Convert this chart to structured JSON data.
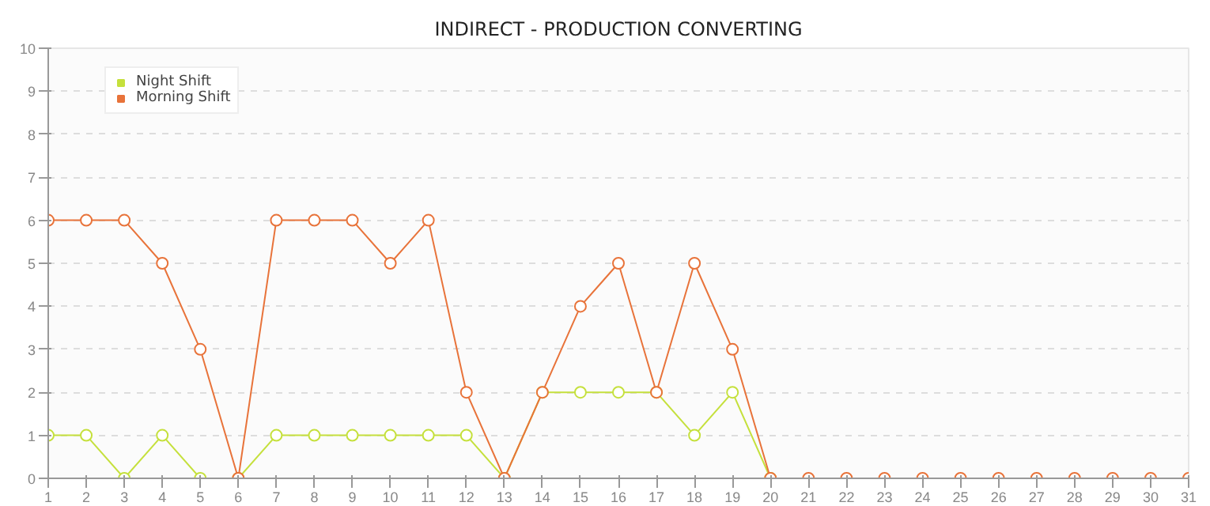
{
  "chart_data": {
    "type": "line",
    "title": "INDIRECT - PRODUCTION CONVERTING",
    "x": [
      1,
      2,
      3,
      4,
      5,
      6,
      7,
      8,
      9,
      10,
      11,
      12,
      13,
      14,
      15,
      16,
      17,
      18,
      19,
      20,
      21,
      22,
      23,
      24,
      25,
      26,
      27,
      28,
      29,
      30,
      31
    ],
    "series": [
      {
        "name": "Night Shift",
        "color": "#c5e03c",
        "values": [
          1,
          1,
          0,
          1,
          0,
          0,
          1,
          1,
          1,
          1,
          1,
          1,
          0,
          2,
          2,
          2,
          2,
          1,
          2,
          0,
          null,
          null,
          null,
          null,
          null,
          null,
          null,
          null,
          null,
          null,
          null
        ]
      },
      {
        "name": "Morning Shift",
        "color": "#e8733a",
        "values": [
          6,
          6,
          6,
          5,
          3,
          0,
          6,
          6,
          6,
          5,
          6,
          2,
          0,
          2,
          4,
          5,
          2,
          5,
          3,
          0,
          0,
          0,
          0,
          0,
          0,
          0,
          0,
          0,
          0,
          0,
          0
        ]
      }
    ],
    "xlim": [
      1,
      31
    ],
    "xticks": [
      1,
      2,
      3,
      4,
      5,
      6,
      7,
      8,
      9,
      10,
      11,
      12,
      13,
      14,
      15,
      16,
      17,
      18,
      19,
      20,
      21,
      22,
      23,
      24,
      25,
      26,
      27,
      28,
      29,
      30,
      31
    ],
    "ylim": [
      0,
      10
    ],
    "yticks": [
      0,
      1,
      2,
      3,
      4,
      5,
      6,
      7,
      8,
      9,
      10
    ],
    "grid": "y",
    "legend": "top left",
    "marker": "circle",
    "line_style": "solid"
  }
}
